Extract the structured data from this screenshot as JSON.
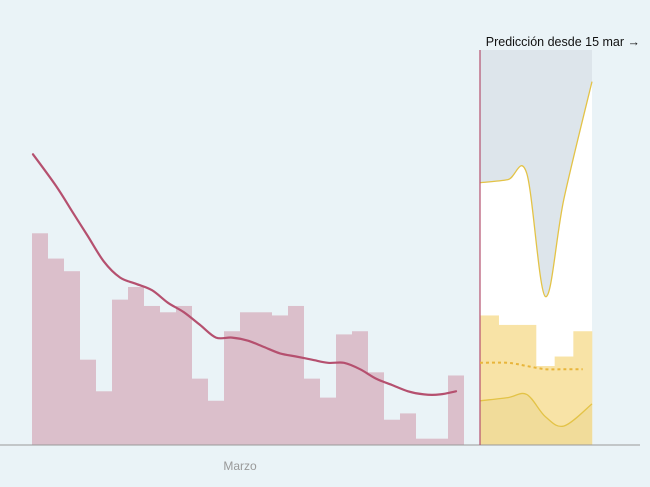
{
  "chart_data": {
    "type": "bar",
    "annotation": "Predicción desde 15 mar →",
    "month_label": "Marzo",
    "observed": {
      "bars": [
        67,
        59,
        55,
        27,
        17,
        46,
        50,
        44,
        42,
        44,
        21,
        14,
        36,
        42,
        42,
        41,
        44,
        21,
        15,
        35,
        36,
        23,
        8,
        10,
        2,
        2,
        22
      ],
      "average": [
        92,
        82,
        74,
        66,
        58,
        53,
        51,
        49,
        45,
        42,
        38,
        34,
        34,
        33,
        31,
        29,
        28,
        27,
        26,
        26,
        24,
        21,
        19,
        17,
        16,
        16,
        17
      ]
    },
    "prediction": {
      "bars_upper": [
        41,
        38,
        38,
        25,
        28,
        36
      ],
      "bars_lower": [
        15,
        15,
        12,
        11,
        5,
        13
      ],
      "average": [
        26,
        26,
        25,
        24,
        24,
        24
      ],
      "band_upper": [
        83,
        84,
        86,
        47,
        78,
        115
      ],
      "band_lower": [
        14,
        15,
        16,
        9,
        6,
        13
      ]
    },
    "ylim": [
      0,
      125
    ],
    "colors": {
      "background": "#eaf3f7",
      "bars": "#dbbfcb",
      "line": "#b5506f",
      "prediction_marker": "#b5506f",
      "prediction_area": "#dde5eb",
      "prediction_bars": "#f8e3a6",
      "prediction_bars_low": "#efd995",
      "prediction_line": "#e8b53a",
      "band_stroke": "#e3c347",
      "axis": "#999999",
      "label": "#999999",
      "annotation": "#111111"
    }
  }
}
